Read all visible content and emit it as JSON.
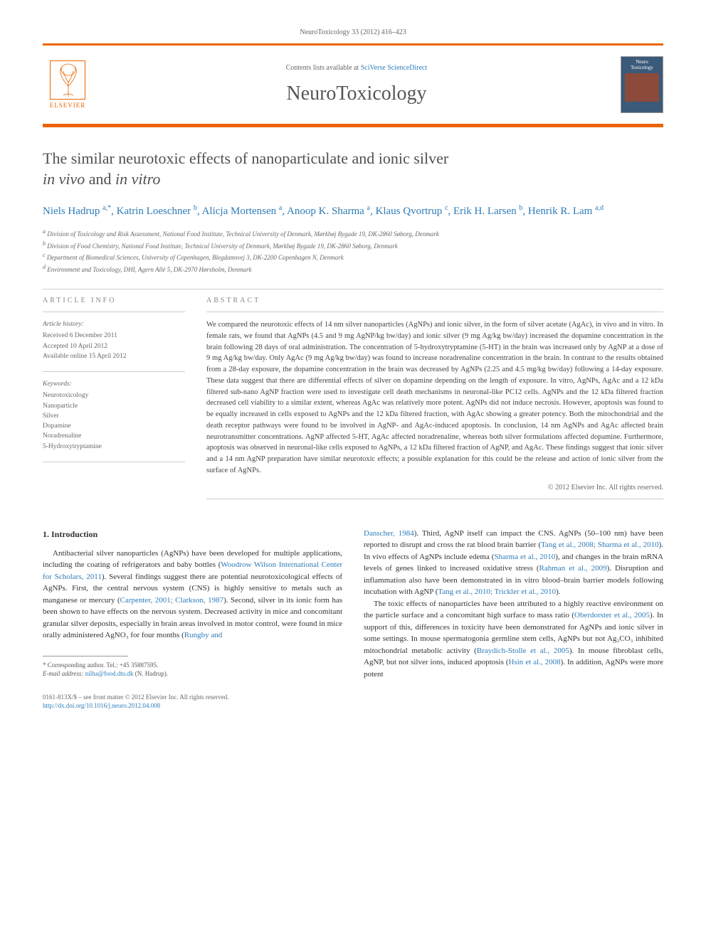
{
  "top_header": "NeuroToxicology 33 (2012) 416–423",
  "masthead": {
    "elsevier": "ELSEVIER",
    "contents_prefix": "Contents lists available at ",
    "contents_link": "SciVerse ScienceDirect",
    "journal": "NeuroToxicology",
    "cover_label": "Neuro Toxicology"
  },
  "title_line1": "The similar neurotoxic effects of nanoparticulate and ionic silver",
  "title_line2_pre": "",
  "title_line2_em1": "in vivo",
  "title_line2_mid": " and ",
  "title_line2_em2": "in vitro",
  "authors_html": "Niels Hadrup|a,*|, Katrin Loeschner|b|, Alicja Mortensen|a|, Anoop K. Sharma|a|, Klaus Qvortrup|c|, Erik H. Larsen|b|, Henrik R. Lam|a,d|",
  "authors": [
    {
      "name": "Niels Hadrup",
      "sup": "a,*"
    },
    {
      "name": "Katrin Loeschner",
      "sup": "b"
    },
    {
      "name": "Alicja Mortensen",
      "sup": "a"
    },
    {
      "name": "Anoop K. Sharma",
      "sup": "a"
    },
    {
      "name": "Klaus Qvortrup",
      "sup": "c"
    },
    {
      "name": "Erik H. Larsen",
      "sup": "b"
    },
    {
      "name": "Henrik R. Lam",
      "sup": "a,d"
    }
  ],
  "affiliations": [
    {
      "sup": "a",
      "text": "Division of Toxicology and Risk Assessment, National Food Institute, Technical University of Denmark, Mørkhøj Bygade 19, DK-2860 Søborg, Denmark"
    },
    {
      "sup": "b",
      "text": "Division of Food Chemistry, National Food Institute, Technical University of Denmark, Mørkhøj Bygade 19, DK-2860 Søborg, Denmark"
    },
    {
      "sup": "c",
      "text": "Department of Biomedical Sciences, University of Copenhagen, Blegdamsvej 3, DK-2200 Copenhagen N, Denmark"
    },
    {
      "sup": "d",
      "text": "Environment and Toxicology, DHI, Agern Allé 5, DK-2970 Hørsholm, Denmark"
    }
  ],
  "article_info_label": "ARTICLE INFO",
  "abstract_label": "ABSTRACT",
  "history_title": "Article history:",
  "history": [
    "Received 6 December 2011",
    "Accepted 10 April 2012",
    "Available online 15 April 2012"
  ],
  "keywords_title": "Keywords:",
  "keywords": [
    "Neurotoxicology",
    "Nanoparticle",
    "Silver",
    "Dopamine",
    "Noradrenaline",
    "5-Hydroxytryptamine"
  ],
  "abstract": "We compared the neurotoxic effects of 14 nm silver nanoparticles (AgNPs) and ionic silver, in the form of silver acetate (AgAc), in vivo and in vitro. In female rats, we found that AgNPs (4.5 and 9 mg AgNP/kg bw/day) and ionic silver (9 mg Ag/kg bw/day) increased the dopamine concentration in the brain following 28 days of oral administration. The concentration of 5-hydroxytryptamine (5-HT) in the brain was increased only by AgNP at a dose of 9 mg Ag/kg bw/day. Only AgAc (9 mg Ag/kg bw/day) was found to increase noradrenaline concentration in the brain. In contrast to the results obtained from a 28-day exposure, the dopamine concentration in the brain was decreased by AgNPs (2.25 and 4.5 mg/kg bw/day) following a 14-day exposure. These data suggest that there are differential effects of silver on dopamine depending on the length of exposure. In vitro, AgNPs, AgAc and a 12 kDa filtered sub-nano AgNP fraction were used to investigate cell death mechanisms in neuronal-like PC12 cells. AgNPs and the 12 kDa filtered fraction decreased cell viability to a similar extent, whereas AgAc was relatively more potent. AgNPs did not induce necrosis. However, apoptosis was found to be equally increased in cells exposed to AgNPs and the 12 kDa filtered fraction, with AgAc showing a greater potency. Both the mitochondrial and the death receptor pathways were found to be involved in AgNP- and AgAc-induced apoptosis. In conclusion, 14 nm AgNPs and AgAc affected brain neurotransmitter concentrations. AgNP affected 5-HT, AgAc affected noradrenaline, whereas both silver formulations affected dopamine. Furthermore, apoptosis was observed in neuronal-like cells exposed to AgNPs, a 12 kDa filtered fraction of AgNP, and AgAc. These findings suggest that ionic silver and a 14 nm AgNP preparation have similar neurotoxic effects; a possible explanation for this could be the release and action of ionic silver from the surface of AgNPs.",
  "abstract_copyright": "© 2012 Elsevier Inc. All rights reserved.",
  "intro_heading": "1. Introduction",
  "intro_p1_a": "Antibacterial silver nanoparticles (AgNPs) have been developed for multiple applications, including the coating of refrigerators and baby bottles (",
  "intro_p1_c1": "Woodrow Wilson International Center for Scholars, 2011",
  "intro_p1_b": "). Several findings suggest there are potential neurotoxicological effects of AgNPs. First, the central nervous system (CNS) is highly sensitive to metals such as manganese or mercury (",
  "intro_p1_c2": "Carpenter, 2001; Clarkson, 1987",
  "intro_p1_c": "). Second, silver in its ionic form has been shown to have effects on the nervous system. Decreased activity in mice and concomitant granular silver deposits, especially in brain areas involved in motor control, were found in mice orally administered AgNO₃ for four months (",
  "intro_p1_c3": "Rungby and",
  "col2_p1_c3b": "Danscher, 1984",
  "col2_p1_a": "). Third, AgNP itself can impact the CNS. AgNPs (50–100 nm) have been reported to disrupt and cross the rat blood brain barrier (",
  "col2_p1_c1": "Tang et al., 2008; Sharma et al., 2010",
  "col2_p1_b": "). In vivo effects of AgNPs include edema (",
  "col2_p1_c2": "Sharma et al., 2010",
  "col2_p1_c": "), and changes in the brain mRNA levels of genes linked to increased oxidative stress (",
  "col2_p1_c3": "Rahman et al., 2009",
  "col2_p1_d": "). Disruption and inflammation also have been demonstrated in in vitro blood–brain barrier models following incubation with AgNP (",
  "col2_p1_c4": "Tang et al., 2010; Trickler et al., 2010",
  "col2_p1_e": ").",
  "col2_p2_a": "The toxic effects of nanoparticles have been attributed to a highly reactive environment on the particle surface and a concomitant high surface to mass ratio (",
  "col2_p2_c1": "Oberdorster et al., 2005",
  "col2_p2_b": "). In support of this, differences in toxicity have been demonstrated for AgNPs and ionic silver in some settings. In mouse spermatogonia germline stem cells, AgNPs but not Ag₂CO₃ inhibited mitochondrial metabolic activity (",
  "col2_p2_c2": "Braydich-Stolle et al., 2005",
  "col2_p2_c": "). In mouse fibroblast cells, AgNP, but not silver ions, induced apoptosis (",
  "col2_p2_c3": "Hsin et al., 2008",
  "col2_p2_d": "). In addition, AgNPs were more potent",
  "corr_label": "* Corresponding author. Tel.: +45 35887595.",
  "corr_email_label": "E-mail address: ",
  "corr_email": "nilha@food.dtu.dk",
  "corr_name": " (N. Hadrup).",
  "footer_line1": "0161-813X/$ – see front matter © 2012 Elsevier Inc. All rights reserved.",
  "footer_doi": "http://dx.doi.org/10.1016/j.neuro.2012.04.008",
  "colors": {
    "accent": "#eb6500",
    "link": "#2e7cb8",
    "text": "#333333",
    "muted": "#666666"
  }
}
